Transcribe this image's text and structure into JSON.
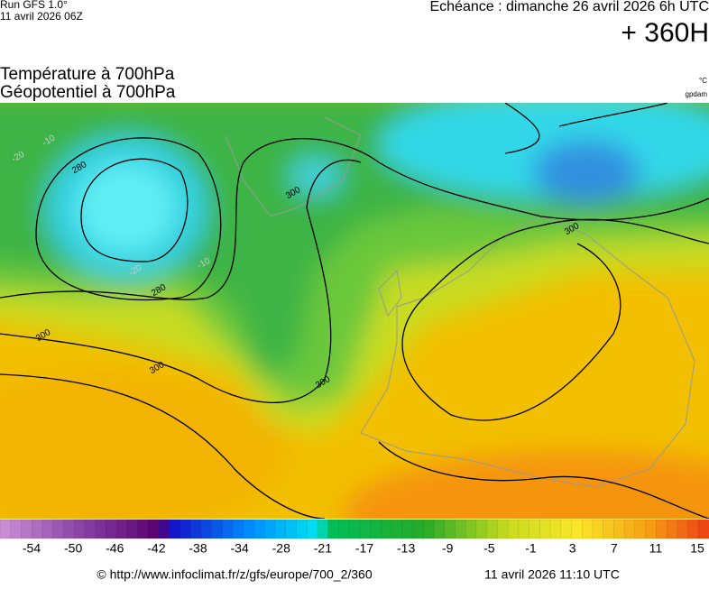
{
  "header": {
    "run": "Run GFS 1.0°",
    "run_date": "11 avril 2026 06Z",
    "valid": "Echéance : dimanche 26 avril 2026 6h UTC",
    "lead": "+ 360H",
    "title_1": "Température à 700hPa",
    "title_2": "Géopotentiel à 700hPa",
    "unit_temp": "°C",
    "unit_geo": "gpdam"
  },
  "map": {
    "contour_labels": [
      "280",
      "280",
      "300",
      "300",
      "300",
      "300",
      "300",
      "-20",
      "-10",
      "-20",
      "-10"
    ]
  },
  "colorbar": {
    "labels": [
      -54,
      -50,
      -46,
      -42,
      -38,
      -34,
      -28,
      -21,
      -17,
      -13,
      -9,
      -5,
      -1,
      3,
      7,
      11,
      15
    ]
  },
  "footer": {
    "source": "© http://www.infoclimat.fr/z/gfs/europe/700_2/360",
    "date": "11 avril 2026 11:10 UTC"
  }
}
